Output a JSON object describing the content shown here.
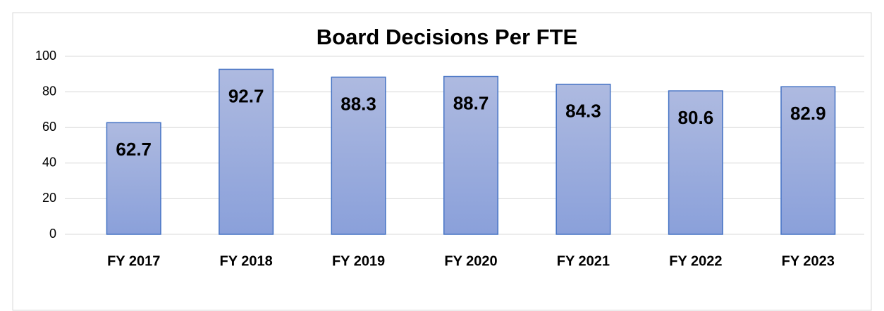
{
  "chart_data": {
    "type": "bar",
    "title": "Board Decisions Per FTE",
    "categories": [
      "FY 2017",
      "FY 2018",
      "FY 2019",
      "FY 2020",
      "FY 2021",
      "FY 2022",
      "FY 2023"
    ],
    "values": [
      62.7,
      92.7,
      88.3,
      88.7,
      84.3,
      80.6,
      82.9
    ],
    "color": "#4472c4",
    "ylim": [
      0,
      100
    ],
    "yticks": [
      0,
      20,
      40,
      60,
      80,
      100
    ],
    "grid": true
  }
}
